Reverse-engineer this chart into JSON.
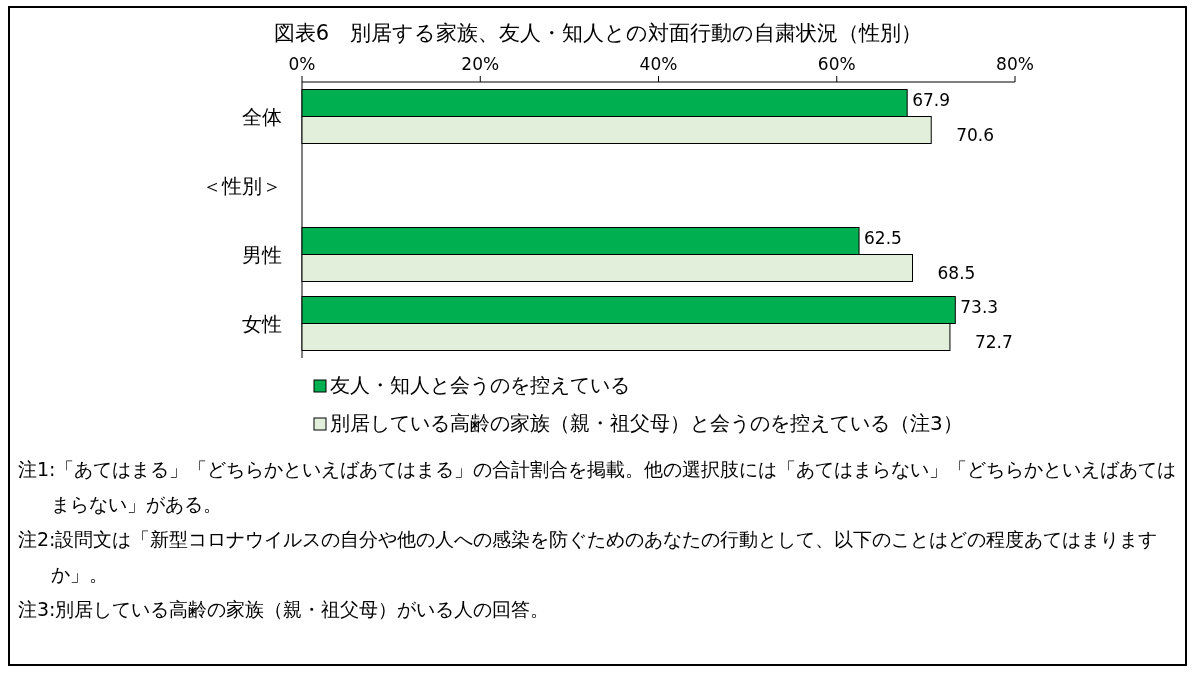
{
  "chart_data": {
    "type": "bar",
    "orientation": "horizontal",
    "title": "図表6　別居する家族、友人・知人との対面行動の自粛状況（性別）",
    "categories": [
      "全体",
      "＜性別＞",
      "男性",
      "女性"
    ],
    "series": [
      {
        "name": "友人・知人と会うのを控えている",
        "color": "#00b050",
        "values": [
          67.9,
          null,
          62.5,
          73.3
        ]
      },
      {
        "name": "別居している高齢の家族（親・祖父母）と会うのを控えている（注3）",
        "color": "#e2efda",
        "values": [
          70.6,
          null,
          68.5,
          72.7
        ]
      }
    ],
    "xlim": [
      0,
      80
    ],
    "xticks": [
      {
        "value": 0,
        "label": "0%"
      },
      {
        "value": 20,
        "label": "20%"
      },
      {
        "value": 40,
        "label": "40%"
      },
      {
        "value": 60,
        "label": "60%"
      },
      {
        "value": 80,
        "label": "80%"
      }
    ],
    "data_labels": true,
    "legend": "bottom",
    "annotations": [
      "注1:「あてはまる」「どちらかといえばあてはまる」の合計割合を掲載。他の選択肢には「あてはまらない」「どちらかといえばあてはまらない」がある。",
      "注2:設問文は「新型コロナウイルスの自分や他の人への感染を防ぐためのあなたの行動として、以下のことはどの程度あてはまりますか」。",
      "注3:別居している高齢の家族（親・祖父母）がいる人の回答。"
    ]
  }
}
